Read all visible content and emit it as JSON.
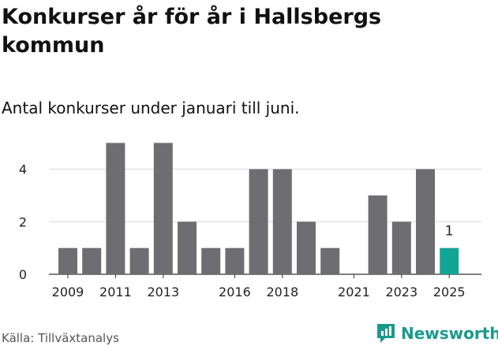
{
  "title": "Konkurser år för år i Hallsbergs kommun",
  "subtitle": "Antal konkurser under januari till juni.",
  "source": "Källa: Tillväxtanalys",
  "brand": "Newsworthy",
  "colors": {
    "bar": "#6e6d71",
    "highlight": "#12a594",
    "grid": "#d9d9d9",
    "brand": "#1a9a8c"
  },
  "chart_data": {
    "type": "bar",
    "title": "Konkurser år för år i Hallsbergs kommun",
    "subtitle": "Antal konkurser under januari till juni.",
    "categories": [
      "2009",
      "2010",
      "2011",
      "2012",
      "2013",
      "2014",
      "2015",
      "2016",
      "2017",
      "2018",
      "2019",
      "2020",
      "2021",
      "2022",
      "2023",
      "2024",
      "2025"
    ],
    "values": [
      1,
      1,
      5,
      1,
      5,
      2,
      1,
      1,
      4,
      4,
      2,
      1,
      0,
      3,
      2,
      4,
      1
    ],
    "highlight_category": "2025",
    "data_labels": [
      {
        "category": "2025",
        "text": "1"
      }
    ],
    "xticks": [
      "2009",
      "2011",
      "2013",
      "2016",
      "2018",
      "2021",
      "2023",
      "2025"
    ],
    "yticks": [
      0,
      2,
      4
    ],
    "ylim": [
      0,
      5.4
    ],
    "xlabel": "",
    "ylabel": "",
    "grid": true,
    "legend": "none"
  }
}
